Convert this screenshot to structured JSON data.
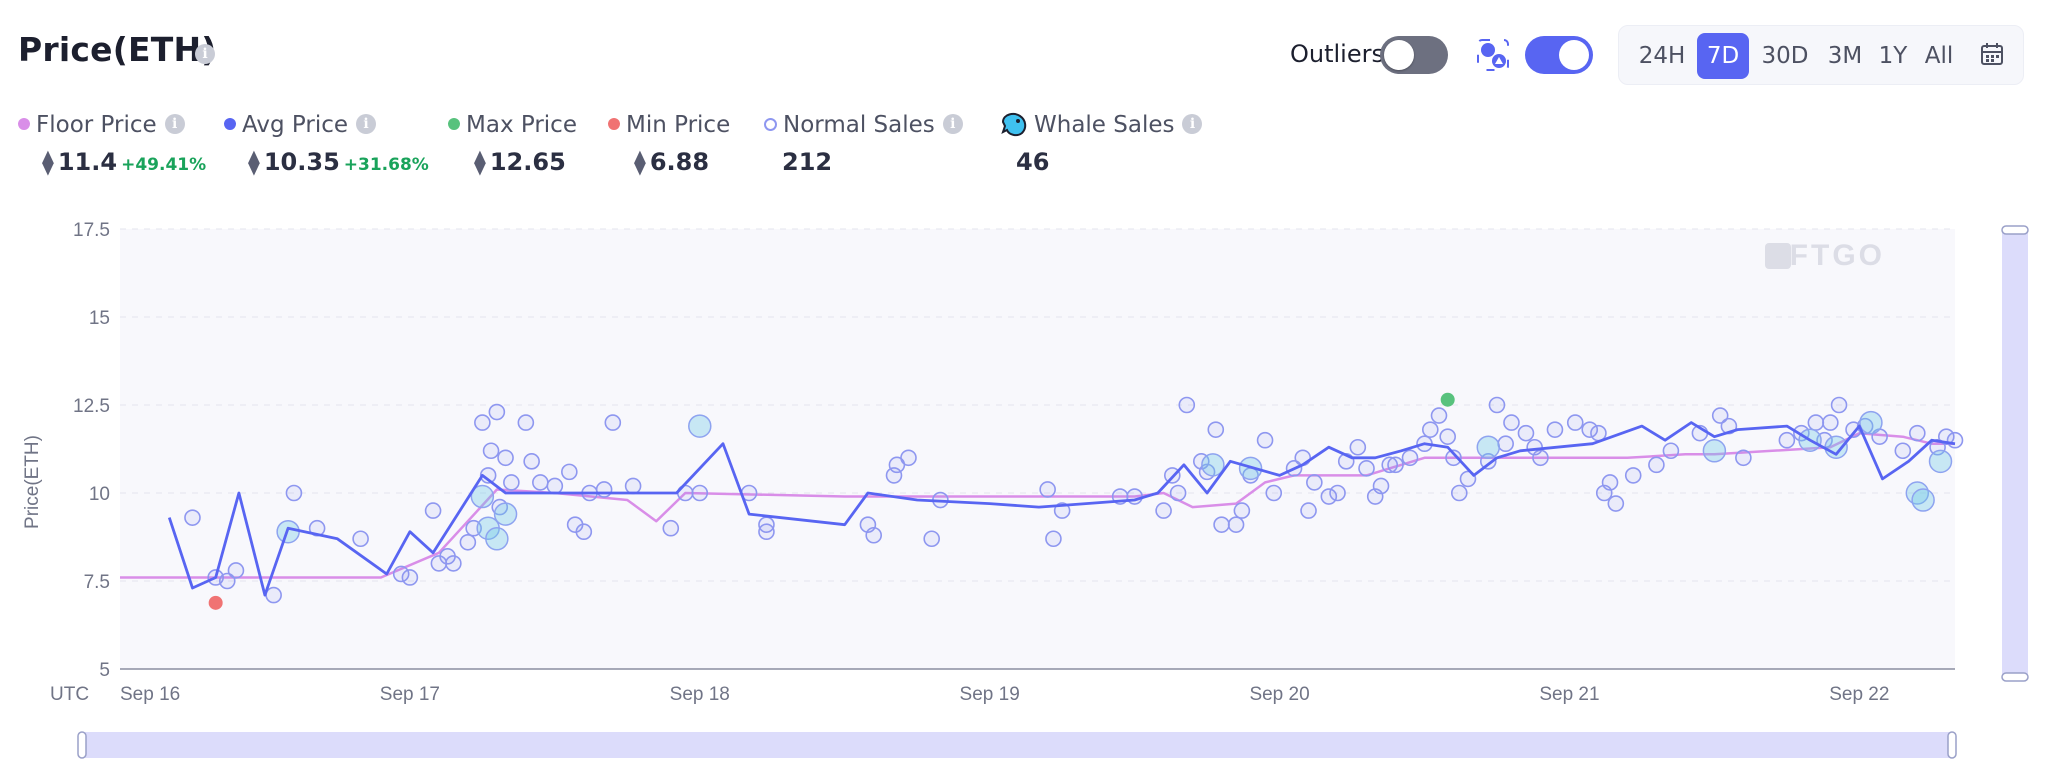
{
  "header": {
    "title": "Price(ETH)",
    "outliers_label": "Outliers",
    "outliers_enabled": false,
    "whale_toggle_enabled": true,
    "time_ranges": [
      "24H",
      "7D",
      "30D",
      "3M",
      "1Y",
      "All"
    ],
    "active_range": "7D",
    "calendar_icon": "calendar-icon",
    "info_icon": "info-icon"
  },
  "legend": [
    {
      "label": "Floor Price",
      "color": "#d98ee8",
      "style": "dot",
      "value": "11.4",
      "change": "+49.41%",
      "currency": "ETH"
    },
    {
      "label": "Avg Price",
      "color": "#5865f2",
      "style": "dot",
      "value": "10.35",
      "change": "+31.68%",
      "currency": "ETH"
    },
    {
      "label": "Max Price",
      "color": "#58c27d",
      "style": "dot",
      "value": "12.65",
      "change": "",
      "currency": "ETH"
    },
    {
      "label": "Min Price",
      "color": "#f07373",
      "style": "dot",
      "value": "6.88",
      "change": "",
      "currency": "ETH"
    },
    {
      "label": "Normal Sales",
      "color": "#8e97f0",
      "style": "hollow",
      "value": "212",
      "change": "",
      "currency": ""
    },
    {
      "label": "Whale Sales",
      "color": "#2f9fd8",
      "style": "whale-icon",
      "value": "46",
      "change": "",
      "currency": ""
    }
  ],
  "chart_data": {
    "type": "line",
    "ylabel": "Price(ETH)",
    "xlabel": "",
    "x_ticks": [
      "Sep 16",
      "Sep 17",
      "Sep 18",
      "Sep 19",
      "Sep 20",
      "Sep 21",
      "Sep 22"
    ],
    "x_timezone_label": "UTC",
    "xlim_days": [
      16,
      22.33
    ],
    "y_ticks": [
      "5",
      "7.5",
      "10",
      "12.5",
      "15",
      "17.5"
    ],
    "ylim": [
      5,
      17.5
    ],
    "grid": true,
    "watermark": "NFTGO",
    "series": [
      {
        "name": "Floor Price",
        "color": "#d98ee8",
        "points": [
          [
            16.0,
            7.6
          ],
          [
            16.9,
            7.6
          ],
          [
            17.1,
            8.3
          ],
          [
            17.3,
            10.1
          ],
          [
            17.5,
            10.0
          ],
          [
            17.75,
            9.8
          ],
          [
            17.85,
            9.2
          ],
          [
            17.95,
            10.0
          ],
          [
            18.5,
            9.9
          ],
          [
            19.0,
            9.9
          ],
          [
            19.5,
            9.9
          ],
          [
            19.6,
            10.0
          ],
          [
            19.7,
            9.6
          ],
          [
            19.85,
            9.7
          ],
          [
            19.95,
            10.3
          ],
          [
            20.05,
            10.5
          ],
          [
            20.3,
            10.5
          ],
          [
            20.5,
            11.0
          ],
          [
            20.9,
            11.0
          ],
          [
            21.2,
            11.0
          ],
          [
            21.4,
            11.1
          ],
          [
            21.5,
            11.1
          ],
          [
            21.7,
            11.2
          ],
          [
            21.9,
            11.3
          ],
          [
            22.0,
            11.7
          ],
          [
            22.15,
            11.6
          ],
          [
            22.25,
            11.4
          ],
          [
            22.33,
            11.4
          ]
        ]
      },
      {
        "name": "Avg Price",
        "color": "#5865f2",
        "points": [
          [
            16.17,
            9.3
          ],
          [
            16.25,
            7.3
          ],
          [
            16.33,
            7.6
          ],
          [
            16.41,
            10.0
          ],
          [
            16.5,
            7.1
          ],
          [
            16.58,
            9.0
          ],
          [
            16.75,
            8.7
          ],
          [
            16.92,
            7.7
          ],
          [
            17.0,
            8.9
          ],
          [
            17.08,
            8.3
          ],
          [
            17.25,
            10.5
          ],
          [
            17.33,
            10.0
          ],
          [
            17.58,
            10.0
          ],
          [
            17.92,
            10.0
          ],
          [
            18.08,
            11.4
          ],
          [
            18.17,
            9.4
          ],
          [
            18.5,
            9.1
          ],
          [
            18.58,
            10.0
          ],
          [
            18.75,
            9.8
          ],
          [
            19.0,
            9.7
          ],
          [
            19.17,
            9.6
          ],
          [
            19.5,
            9.8
          ],
          [
            19.58,
            10.0
          ],
          [
            19.67,
            10.8
          ],
          [
            19.75,
            10.0
          ],
          [
            19.83,
            10.9
          ],
          [
            20.0,
            10.5
          ],
          [
            20.08,
            10.8
          ],
          [
            20.17,
            11.3
          ],
          [
            20.25,
            11.0
          ],
          [
            20.33,
            11.0
          ],
          [
            20.42,
            11.2
          ],
          [
            20.5,
            11.4
          ],
          [
            20.58,
            11.3
          ],
          [
            20.67,
            10.5
          ],
          [
            20.75,
            11.0
          ],
          [
            20.83,
            11.2
          ],
          [
            21.08,
            11.4
          ],
          [
            21.25,
            11.9
          ],
          [
            21.33,
            11.5
          ],
          [
            21.42,
            12.0
          ],
          [
            21.5,
            11.6
          ],
          [
            21.58,
            11.8
          ],
          [
            21.75,
            11.9
          ],
          [
            21.83,
            11.5
          ],
          [
            21.92,
            11.1
          ],
          [
            22.0,
            11.9
          ],
          [
            22.08,
            10.4
          ],
          [
            22.17,
            10.9
          ],
          [
            22.25,
            11.5
          ],
          [
            22.33,
            11.4
          ]
        ]
      }
    ],
    "normal_sales": [
      [
        16.25,
        9.3
      ],
      [
        16.33,
        7.6
      ],
      [
        16.37,
        7.5
      ],
      [
        16.4,
        7.8
      ],
      [
        16.53,
        7.1
      ],
      [
        16.6,
        10.0
      ],
      [
        16.68,
        9.0
      ],
      [
        16.83,
        8.7
      ],
      [
        16.97,
        7.7
      ],
      [
        17.0,
        7.6
      ],
      [
        17.08,
        9.5
      ],
      [
        17.1,
        8.0
      ],
      [
        17.13,
        8.2
      ],
      [
        17.15,
        8.0
      ],
      [
        17.2,
        8.6
      ],
      [
        17.22,
        9.0
      ],
      [
        17.25,
        12.0
      ],
      [
        17.27,
        10.5
      ],
      [
        17.28,
        11.2
      ],
      [
        17.3,
        12.3
      ],
      [
        17.31,
        9.6
      ],
      [
        17.33,
        11.0
      ],
      [
        17.35,
        10.3
      ],
      [
        17.4,
        12.0
      ],
      [
        17.42,
        10.9
      ],
      [
        17.45,
        10.3
      ],
      [
        17.5,
        10.2
      ],
      [
        17.55,
        10.6
      ],
      [
        17.57,
        9.1
      ],
      [
        17.6,
        8.9
      ],
      [
        17.62,
        10.0
      ],
      [
        17.67,
        10.1
      ],
      [
        17.7,
        12.0
      ],
      [
        17.77,
        10.2
      ],
      [
        17.9,
        9.0
      ],
      [
        17.95,
        10.0
      ],
      [
        18.0,
        10.0
      ],
      [
        18.17,
        10.0
      ],
      [
        18.23,
        9.1
      ],
      [
        18.23,
        8.9
      ],
      [
        18.58,
        9.1
      ],
      [
        18.6,
        8.8
      ],
      [
        18.67,
        10.5
      ],
      [
        18.68,
        10.8
      ],
      [
        18.72,
        11.0
      ],
      [
        18.8,
        8.7
      ],
      [
        18.83,
        9.8
      ],
      [
        19.2,
        10.1
      ],
      [
        19.22,
        8.7
      ],
      [
        19.25,
        9.5
      ],
      [
        19.45,
        9.9
      ],
      [
        19.5,
        9.9
      ],
      [
        19.6,
        9.5
      ],
      [
        19.63,
        10.5
      ],
      [
        19.65,
        10.0
      ],
      [
        19.68,
        12.5
      ],
      [
        19.73,
        10.9
      ],
      [
        19.75,
        10.6
      ],
      [
        19.78,
        11.8
      ],
      [
        19.8,
        9.1
      ],
      [
        19.85,
        9.1
      ],
      [
        19.87,
        9.5
      ],
      [
        19.9,
        10.5
      ],
      [
        19.95,
        11.5
      ],
      [
        19.98,
        10.0
      ],
      [
        20.05,
        10.7
      ],
      [
        20.08,
        11.0
      ],
      [
        20.1,
        9.5
      ],
      [
        20.12,
        10.3
      ],
      [
        20.17,
        9.9
      ],
      [
        20.2,
        10.0
      ],
      [
        20.23,
        10.9
      ],
      [
        20.27,
        11.3
      ],
      [
        20.3,
        10.7
      ],
      [
        20.33,
        9.9
      ],
      [
        20.35,
        10.2
      ],
      [
        20.38,
        10.8
      ],
      [
        20.4,
        10.8
      ],
      [
        20.45,
        11.0
      ],
      [
        20.5,
        11.4
      ],
      [
        20.52,
        11.8
      ],
      [
        20.55,
        12.2
      ],
      [
        20.58,
        11.6
      ],
      [
        20.6,
        11.0
      ],
      [
        20.62,
        10.0
      ],
      [
        20.65,
        10.4
      ],
      [
        20.72,
        10.9
      ],
      [
        20.75,
        12.5
      ],
      [
        20.78,
        11.4
      ],
      [
        20.8,
        12.0
      ],
      [
        20.85,
        11.7
      ],
      [
        20.88,
        11.3
      ],
      [
        20.9,
        11.0
      ],
      [
        20.95,
        11.8
      ],
      [
        21.02,
        12.0
      ],
      [
        21.07,
        11.8
      ],
      [
        21.1,
        11.7
      ],
      [
        21.12,
        10.0
      ],
      [
        21.14,
        10.3
      ],
      [
        21.16,
        9.7
      ],
      [
        21.22,
        10.5
      ],
      [
        21.3,
        10.8
      ],
      [
        21.35,
        11.2
      ],
      [
        21.45,
        11.7
      ],
      [
        21.52,
        12.2
      ],
      [
        21.55,
        11.9
      ],
      [
        21.6,
        11.0
      ],
      [
        21.75,
        11.5
      ],
      [
        21.8,
        11.7
      ],
      [
        21.85,
        12.0
      ],
      [
        21.88,
        11.5
      ],
      [
        21.9,
        12.0
      ],
      [
        21.93,
        12.5
      ],
      [
        21.98,
        11.8
      ],
      [
        22.02,
        11.9
      ],
      [
        22.07,
        11.6
      ],
      [
        22.15,
        11.2
      ],
      [
        22.2,
        11.7
      ],
      [
        22.27,
        11.3
      ],
      [
        22.3,
        11.6
      ],
      [
        22.33,
        11.5
      ]
    ],
    "whale_sales": [
      [
        16.58,
        8.9
      ],
      [
        17.25,
        9.9
      ],
      [
        17.27,
        9.0
      ],
      [
        17.3,
        8.7
      ],
      [
        17.33,
        9.4
      ],
      [
        18.0,
        11.9
      ],
      [
        19.77,
        10.8
      ],
      [
        19.9,
        10.7
      ],
      [
        20.72,
        11.3
      ],
      [
        21.5,
        11.2
      ],
      [
        21.83,
        11.5
      ],
      [
        21.92,
        11.3
      ],
      [
        22.04,
        12.0
      ],
      [
        22.2,
        10.0
      ],
      [
        22.22,
        9.8
      ],
      [
        22.28,
        10.9
      ]
    ],
    "max_point": {
      "x": 20.58,
      "y": 12.65
    },
    "min_point": {
      "x": 16.33,
      "y": 6.88
    }
  }
}
